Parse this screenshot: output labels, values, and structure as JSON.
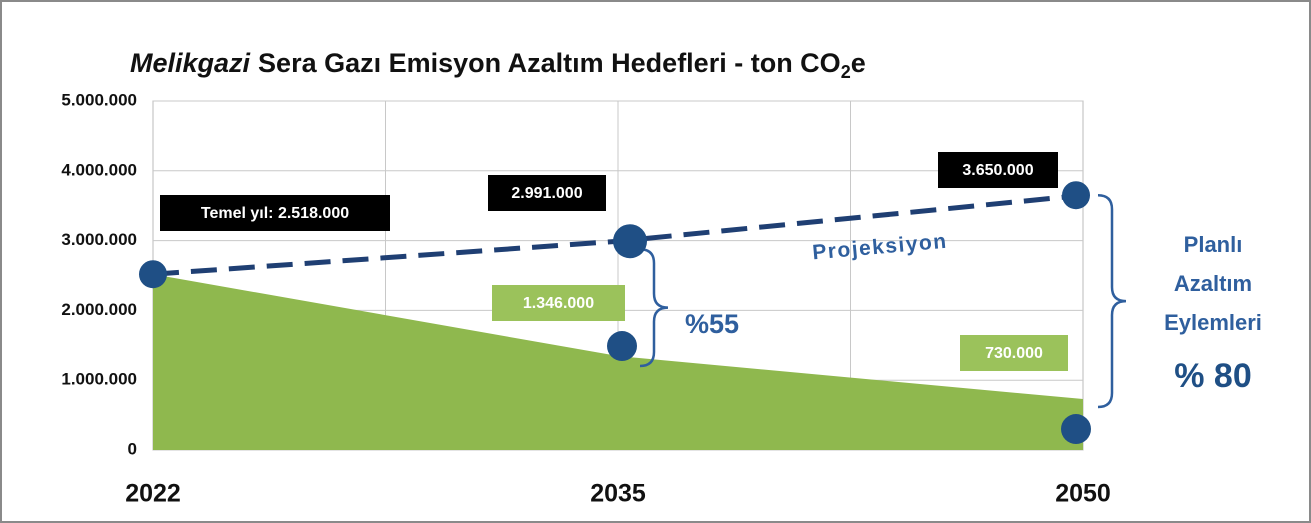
{
  "chart_data": {
    "type": "area_projection",
    "title": {
      "italic": "Melikgazi",
      "main": "Sera Gazı Emisyon Azaltım Hedefleri - ton CO",
      "subscript": "2",
      "suffix": "e"
    },
    "categories": [
      "2022",
      "2035",
      "2050"
    ],
    "series": [
      {
        "name": "Projeksiyon",
        "color": "#1f3f73",
        "values": [
          2518000,
          2991000,
          3650000
        ],
        "value_labels": [
          "Temel yıl: 2.518.000",
          "2.991.000",
          "3.650.000"
        ]
      },
      {
        "color": "#8fb84e",
        "values": [
          2518000,
          1346000,
          730000
        ],
        "value_labels": [
          null,
          "1.346.000",
          "730.000"
        ]
      }
    ],
    "ylim": [
      0,
      5000000
    ],
    "yticks": [
      0,
      {
        "value": 1000000,
        "label": "1.000.000"
      },
      {
        "value": 2000000,
        "label": "2.000.000"
      },
      {
        "value": 3000000,
        "label": "3.000.000"
      },
      {
        "value": 4000000,
        "label": "4.000.000"
      },
      {
        "value": 5000000,
        "label": "5.000.000"
      }
    ],
    "grid": true,
    "annotations": {
      "reduction_2035": "%55",
      "reduction_label": [
        "Planlı",
        "Azaltım",
        "Eylemleri"
      ],
      "reduction_2050": "% 80"
    }
  }
}
